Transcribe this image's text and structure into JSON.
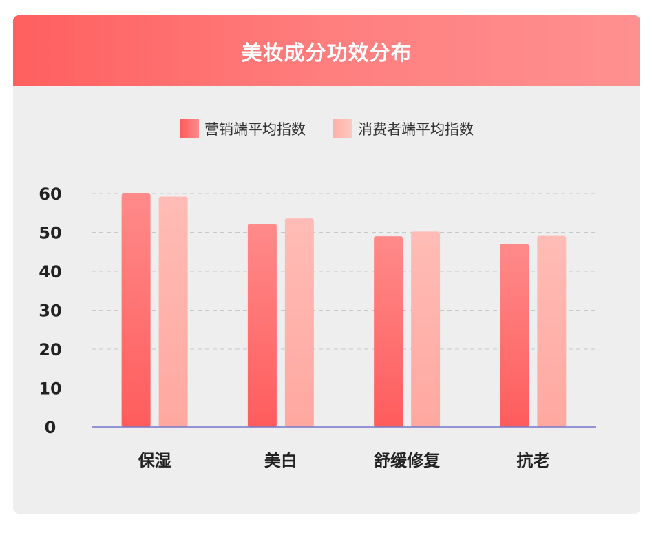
{
  "header": {
    "title": "美妆成分功效分布"
  },
  "chart_data": {
    "type": "bar",
    "title": "美妆成分功效分布",
    "categories": [
      "保湿",
      "美白",
      "舒缓修复",
      "抗老"
    ],
    "series": [
      {
        "name": "营销端平均指数",
        "values": [
          60,
          52.2,
          49,
          47
        ]
      },
      {
        "name": "消费者端平均指数",
        "values": [
          59.2,
          53.6,
          50.2,
          49.1
        ]
      }
    ],
    "yticks": [
      0,
      10,
      20,
      30,
      40,
      50,
      60
    ],
    "ylim": [
      0,
      60
    ],
    "grid": true,
    "legend": "top-center"
  },
  "colors": {
    "accent": "#ff5f5f",
    "series_a_top": "#ff8a8a",
    "series_a_bottom": "#ff5c5c",
    "series_b_top": "#ffbcb6",
    "series_b_bottom": "#ffa8a0",
    "axis": "#7777cc",
    "grid": "#c4cbc4"
  }
}
